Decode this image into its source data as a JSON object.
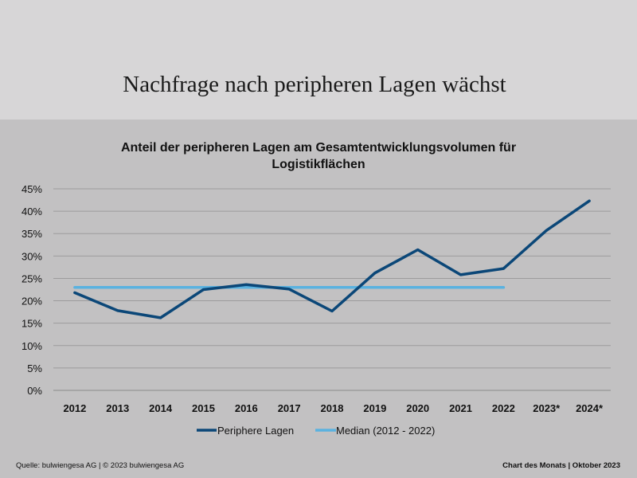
{
  "page": {
    "title": "Nachfrage nach peripheren Lagen wächst"
  },
  "chart_data": {
    "type": "line",
    "title": "Anteil der peripheren Lagen am Gesamtentwicklungsvolumen für Logistikflächen",
    "title_line1": "Anteil der peripheren Lagen am Gesamtentwicklungsvolumen für",
    "title_line2": "Logistikflächen",
    "categories": [
      "2012",
      "2013",
      "2014",
      "2015",
      "2016",
      "2017",
      "2018",
      "2019",
      "2020",
      "2021",
      "2022",
      "2023*",
      "2024*"
    ],
    "y_ticks": [
      "0%",
      "5%",
      "10%",
      "15%",
      "20%",
      "25%",
      "30%",
      "35%",
      "40%",
      "45%"
    ],
    "ylim": [
      0,
      45
    ],
    "grid": true,
    "legend_position": "bottom",
    "series": [
      {
        "name": "Periphere Lagen",
        "color": "#0b4778",
        "values": [
          21.8,
          17.8,
          16.2,
          22.5,
          23.6,
          22.6,
          17.7,
          26.2,
          31.4,
          25.8,
          27.2,
          35.7,
          42.3
        ]
      },
      {
        "name": "Median (2012 - 2022)",
        "color": "#5ab2e0",
        "values": [
          23,
          23,
          23,
          23,
          23,
          23,
          23,
          23,
          23,
          23,
          23,
          null,
          null
        ]
      }
    ]
  },
  "footer": {
    "source": "Quelle: bulwiengesa AG  | © 2023 bulwiengesa AG",
    "label": "Chart des Monats | Oktober 2023"
  }
}
